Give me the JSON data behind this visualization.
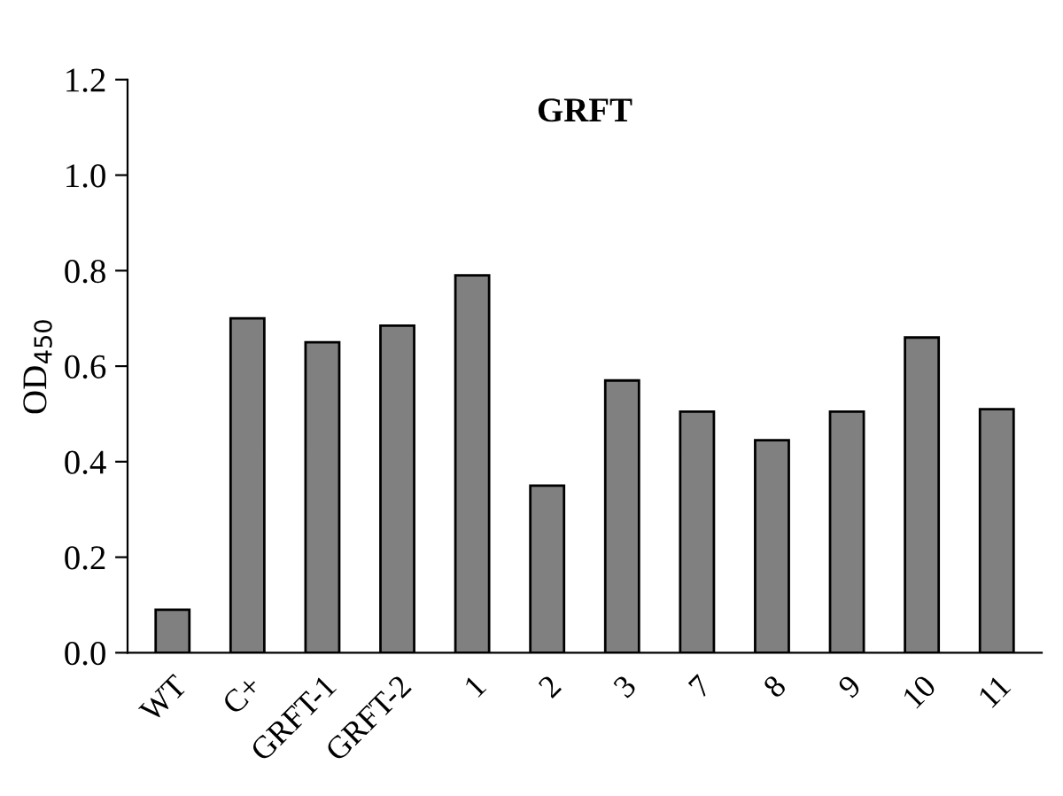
{
  "chart_data": {
    "type": "bar",
    "title": "GRFT",
    "ylabel": "OD$_{450}$",
    "categories": [
      "WT",
      "C+",
      "GRFT-1",
      "GRFT-2",
      "1",
      "2",
      "3",
      "7",
      "8",
      "9",
      "10",
      "11"
    ],
    "values": [
      0.09,
      0.7,
      0.65,
      0.685,
      0.79,
      0.35,
      0.57,
      0.505,
      0.445,
      0.505,
      0.66,
      0.51
    ],
    "color": "#808080",
    "ylim": [
      0,
      1.2
    ],
    "yticks": [
      {
        "value": 0,
        "label": "0.0"
      },
      0.2,
      0.4,
      0.6,
      0.8,
      {
        "value": 1,
        "label": "1.0"
      },
      1.2
    ],
    "grid": false
  }
}
